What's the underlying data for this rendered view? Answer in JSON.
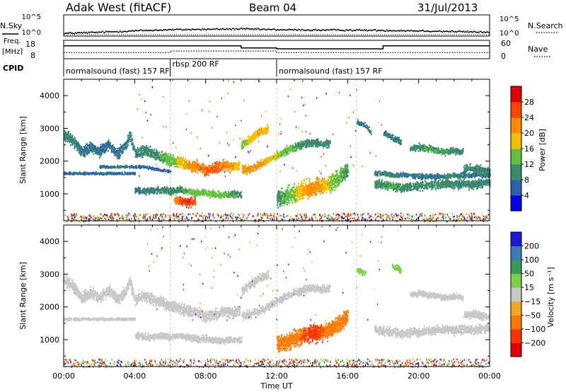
{
  "header": {
    "station": "Adak West (fitACF)",
    "beam": "Beam 04",
    "date": "31/Jul/2013"
  },
  "labels": {
    "nsky": "N.Sky",
    "nsearch": "N.Search",
    "freq_top": "Freq.",
    "freq_unit": "[MHz]",
    "nave": "Nave",
    "cpid": "CPID",
    "slant_range": "Slant Range [km]",
    "time_ut": "Time UT",
    "power_label": "Power [dB]",
    "velocity_label": "Velocity [m s⁻¹]"
  },
  "ticks": {
    "nsky_left": [
      "10^5",
      "10^0"
    ],
    "nsky_right": [
      "10^5",
      "10^0"
    ],
    "freq_left": [
      "18",
      "8"
    ],
    "nave_right": [
      "60",
      "0"
    ],
    "range": [
      "1000",
      "2000",
      "3000",
      "4000"
    ],
    "time": [
      "00:00",
      "04:00",
      "08:00",
      "12:00",
      "16:00",
      "20:00",
      "00:00"
    ]
  },
  "cpid_segments": [
    {
      "label": "normalsound (fast) 157 RF",
      "start_h": 0
    },
    {
      "label": "rbsp 200 RF",
      "start_h": 6
    },
    {
      "label": "normalsound (fast) 157 RF",
      "start_h": 12
    }
  ],
  "colors": {
    "power_scale": [
      "#0000ee",
      "#2b5fb0",
      "#3a8a6a",
      "#60c040",
      "#f0c000",
      "#ff8c00",
      "#ff4500",
      "#e00000"
    ],
    "velocity_scale": [
      "#1a1ad8",
      "#3a7bb8",
      "#3a9a5a",
      "#7ed04a",
      "#c8c8c8",
      "#f5a623",
      "#ff7a00",
      "#ff3300",
      "#e00000"
    ],
    "ground_scatter": "#c8c8c8"
  },
  "chart_data": [
    {
      "type": "line",
      "name": "search-noise-panel",
      "x_hours": [
        0,
        2,
        4,
        6,
        8,
        10,
        12,
        14,
        16,
        18,
        20,
        22,
        24
      ],
      "nsky_log10": [
        0.5,
        0.8,
        1.2,
        1.5,
        1.6,
        1.7,
        1.5,
        1.4,
        1.4,
        1.3,
        1.2,
        1.0,
        0.8
      ],
      "nsearch_log10": [
        0.0,
        0.0,
        0.0,
        0.0,
        0.0,
        0.0,
        0.0,
        0.0,
        0.0,
        0.0,
        0.0,
        0.0,
        0.0
      ],
      "ylim_log10": [
        0,
        5
      ]
    },
    {
      "type": "line",
      "name": "frequency-nave-panel",
      "freq_steps": [
        {
          "from_h": 0,
          "to_h": 10,
          "mhz": 16
        },
        {
          "from_h": 10,
          "to_h": 12,
          "mhz": 14.5
        },
        {
          "from_h": 12,
          "to_h": 18,
          "mhz": 13.8
        },
        {
          "from_h": 18,
          "to_h": 24,
          "mhz": 16
        }
      ],
      "nave_steps": [
        {
          "from_h": 0,
          "to_h": 6,
          "value": 18
        },
        {
          "from_h": 6,
          "to_h": 12,
          "value": 25
        },
        {
          "from_h": 12,
          "to_h": 24,
          "value": 18
        }
      ],
      "freq_lim": [
        8,
        18
      ],
      "nave_lim": [
        0,
        60
      ]
    },
    {
      "type": "heatmap",
      "name": "power-panel",
      "x_range_h": [
        0,
        24
      ],
      "ylim_km": [
        180,
        4500
      ],
      "colorbar_ticks": [
        4,
        8,
        12,
        16,
        20,
        24,
        28
      ],
      "colorbar_range": [
        0,
        30
      ],
      "bands": [
        {
          "t": [
            0,
            0.5,
            1,
            1.5,
            2,
            2.5,
            3,
            3.5,
            3.7,
            4,
            4.5,
            5,
            5.5,
            6,
            6.5,
            7,
            7.5,
            8,
            8.5,
            9,
            9.5,
            9.9
          ],
          "r": [
            2850,
            2650,
            2300,
            2450,
            2300,
            2550,
            2250,
            2500,
            2850,
            2250,
            2350,
            2250,
            2150,
            2050,
            2000,
            1900,
            1850,
            1750,
            1800,
            1900,
            1850,
            1900
          ],
          "width_km": 250,
          "p": [
            9,
            9,
            8,
            8,
            8,
            8,
            8,
            8,
            9,
            9,
            9,
            10,
            12,
            14,
            17,
            22,
            23,
            24,
            25,
            23,
            20,
            18
          ]
        },
        {
          "t": [
            0,
            0.5,
            1,
            1.5,
            2,
            2.5,
            3,
            3.5,
            4
          ],
          "r": [
            1650,
            1650,
            1650,
            1650,
            1650,
            1650,
            1650,
            1650,
            1650
          ],
          "width_km": 60,
          "p": [
            7,
            8,
            8,
            7,
            8,
            8,
            7,
            7,
            7
          ]
        },
        {
          "t": [
            2,
            2.5,
            3,
            3.5,
            4,
            4.5,
            5,
            5.5,
            6
          ],
          "r": [
            1850,
            1850,
            1850,
            1850,
            1850,
            1850,
            1800,
            1750,
            1700
          ],
          "width_km": 60,
          "p": [
            7,
            8,
            8,
            8,
            7,
            7,
            7,
            7,
            7
          ]
        },
        {
          "t": [
            4,
            4.5,
            5,
            5.5,
            6,
            6.5,
            7,
            7.5,
            8,
            8.5,
            9,
            9.5,
            10
          ],
          "r": [
            1150,
            1100,
            1100,
            1150,
            1100,
            1150,
            1100,
            1050,
            1050,
            1000,
            1000,
            1000,
            1000
          ],
          "width_km": 160,
          "p": [
            8,
            9,
            9,
            10,
            10,
            11,
            13,
            14,
            15,
            14,
            13,
            12,
            11
          ]
        },
        {
          "t": [
            6.2,
            6.6,
            7,
            7.4
          ],
          "r": [
            850,
            800,
            750,
            800
          ],
          "width_km": 200,
          "p": [
            22,
            26,
            28,
            25
          ]
        },
        {
          "t": [
            10,
            10.5,
            11,
            11.5,
            12,
            12.5,
            13,
            13.5,
            14,
            14.5,
            15
          ],
          "r": [
            1750,
            1800,
            1900,
            2050,
            2200,
            2350,
            2450,
            2550,
            2600,
            2550,
            2600
          ],
          "width_km": 180,
          "p": [
            20,
            22,
            21,
            19,
            16,
            14,
            12,
            11,
            10,
            9,
            9
          ]
        },
        {
          "t": [
            10,
            10.5,
            11,
            11.5
          ],
          "r": [
            2500,
            2700,
            2900,
            3000
          ],
          "width_km": 200,
          "p": [
            14,
            18,
            20,
            18
          ]
        },
        {
          "t": [
            12,
            12.5,
            13,
            13.5,
            14,
            14.5,
            15,
            15.5,
            16
          ],
          "r": [
            900,
            950,
            1050,
            1150,
            1200,
            1250,
            1350,
            1500,
            1750
          ],
          "width_km": 400,
          "p": [
            10,
            13,
            16,
            20,
            22,
            20,
            16,
            13,
            11
          ]
        },
        {
          "t": [
            17.5,
            18,
            18.5,
            19,
            19.5,
            20,
            20.5,
            21,
            21.5,
            22,
            22.5,
            23,
            23.5,
            24
          ],
          "r": [
            1350,
            1300,
            1250,
            1200,
            1250,
            1250,
            1300,
            1300,
            1350,
            1300,
            1350,
            1300,
            1350,
            1400
          ],
          "width_km": 200,
          "p": [
            10,
            11,
            12,
            11,
            10,
            10,
            11,
            10,
            10,
            9,
            9,
            9,
            9,
            9
          ]
        },
        {
          "t": [
            17.5,
            18,
            18.5,
            19,
            19.5,
            20,
            20.5,
            21,
            21.5,
            22,
            22.5,
            23,
            23.5,
            24
          ],
          "r": [
            1650,
            1650,
            1600,
            1600,
            1600,
            1550,
            1550,
            1550,
            1550,
            1600,
            1600,
            1600,
            1600,
            1600
          ],
          "width_km": 120,
          "p": [
            8,
            9,
            9,
            8,
            8,
            8,
            8,
            8,
            9,
            9,
            8,
            8,
            8,
            8
          ]
        },
        {
          "t": [
            19.5,
            20,
            20.5,
            21,
            21.5,
            22,
            22.5
          ],
          "r": [
            2400,
            2450,
            2400,
            2350,
            2300,
            2350,
            2300
          ],
          "width_km": 150,
          "p": [
            9,
            11,
            12,
            12,
            11,
            10,
            9
          ]
        },
        {
          "t": [
            22.5,
            23,
            23.5,
            24
          ],
          "r": [
            1800,
            1800,
            1750,
            1700
          ],
          "width_km": 200,
          "p": [
            9,
            9,
            9,
            9
          ]
        },
        {
          "t": [
            18,
            18.5,
            19
          ],
          "r": [
            2900,
            2750,
            2600
          ],
          "width_km": 150,
          "p": [
            8,
            9,
            8
          ]
        },
        {
          "t": [
            16.5,
            17,
            17.3
          ],
          "r": [
            3200,
            3100,
            2900
          ],
          "width_km": 120,
          "p": [
            8,
            9,
            8
          ]
        }
      ]
    },
    {
      "type": "heatmap",
      "name": "velocity-panel",
      "x_range_h": [
        0,
        24
      ],
      "ylim_km": [
        180,
        4500
      ],
      "colorbar_ticks": [
        200,
        100,
        50,
        15,
        -15,
        -50,
        -100,
        -200
      ],
      "colorbar_range": [
        -250,
        250
      ],
      "bands": [
        {
          "t": [
            0,
            0.5,
            1,
            1.5,
            2,
            2.5,
            3,
            3.5,
            3.7,
            4,
            4.5,
            5,
            5.5,
            6,
            6.5,
            7,
            7.5,
            8,
            8.5,
            9,
            9.5,
            9.9
          ],
          "r": [
            2850,
            2650,
            2300,
            2450,
            2300,
            2550,
            2250,
            2500,
            2850,
            2250,
            2350,
            2250,
            2150,
            2050,
            2000,
            1900,
            1850,
            1750,
            1800,
            1900,
            1850,
            1900
          ],
          "width_km": 250,
          "v": [
            0,
            0,
            0,
            0,
            0,
            0,
            0,
            0,
            0,
            0,
            0,
            0,
            0,
            0,
            0,
            0,
            0,
            0,
            0,
            0,
            0,
            0
          ]
        },
        {
          "t": [
            0,
            0.5,
            1,
            1.5,
            2,
            2.5,
            3,
            3.5,
            4
          ],
          "r": [
            1650,
            1650,
            1650,
            1650,
            1650,
            1650,
            1650,
            1650,
            1650
          ],
          "width_km": 60,
          "v": [
            0,
            0,
            0,
            0,
            0,
            0,
            0,
            0,
            0
          ]
        },
        {
          "t": [
            4,
            4.5,
            5,
            5.5,
            6,
            6.5,
            7,
            7.5,
            8,
            8.5,
            9,
            9.5,
            10
          ],
          "r": [
            1150,
            1100,
            1100,
            1150,
            1100,
            1150,
            1100,
            1050,
            1050,
            1000,
            1000,
            1000,
            1000
          ],
          "width_km": 160,
          "v": [
            0,
            0,
            0,
            0,
            0,
            0,
            0,
            0,
            0,
            0,
            0,
            0,
            0
          ]
        },
        {
          "t": [
            10,
            10.5,
            11,
            11.5,
            12,
            12.5,
            13,
            13.5,
            14,
            14.5,
            15
          ],
          "r": [
            1750,
            1800,
            1900,
            2050,
            2200,
            2350,
            2450,
            2550,
            2600,
            2550,
            2600
          ],
          "width_km": 180,
          "v": [
            0,
            0,
            0,
            0,
            0,
            0,
            0,
            0,
            0,
            0,
            0
          ]
        },
        {
          "t": [
            10,
            10.5,
            11,
            11.5
          ],
          "r": [
            2500,
            2700,
            2900,
            3000
          ],
          "width_km": 200,
          "v": [
            0,
            0,
            0,
            0
          ]
        },
        {
          "t": [
            12,
            12.5,
            13,
            13.5,
            14,
            14.5,
            15,
            15.5,
            16
          ],
          "r": [
            900,
            950,
            1050,
            1150,
            1200,
            1250,
            1350,
            1500,
            1750
          ],
          "width_km": 400,
          "v": [
            -60,
            -80,
            -90,
            -100,
            -110,
            -100,
            -90,
            -80,
            -70
          ]
        },
        {
          "t": [
            17.5,
            18,
            18.5,
            19,
            19.5,
            20,
            20.5,
            21,
            21.5,
            22,
            22.5,
            23,
            23.5,
            24
          ],
          "r": [
            1350,
            1300,
            1250,
            1200,
            1250,
            1250,
            1300,
            1300,
            1350,
            1300,
            1350,
            1300,
            1350,
            1400
          ],
          "width_km": 200,
          "v": [
            0,
            0,
            0,
            0,
            0,
            0,
            0,
            0,
            0,
            0,
            0,
            0,
            0,
            0
          ]
        },
        {
          "t": [
            19.5,
            20,
            20.5,
            21,
            21.5,
            22,
            22.5
          ],
          "r": [
            2400,
            2450,
            2400,
            2350,
            2300,
            2350,
            2300
          ],
          "width_km": 150,
          "v": [
            0,
            0,
            0,
            0,
            0,
            0,
            0
          ]
        },
        {
          "t": [
            22.5,
            23,
            23.5,
            24
          ],
          "r": [
            1800,
            1800,
            1750,
            1700
          ],
          "width_km": 200,
          "v": [
            0,
            0,
            0,
            0
          ]
        },
        {
          "t": [
            16.5,
            17
          ],
          "r": [
            3150,
            3050
          ],
          "width_km": 120,
          "v": [
            30,
            40
          ]
        },
        {
          "t": [
            18.5,
            19
          ],
          "r": [
            3250,
            3150
          ],
          "width_km": 150,
          "v": [
            30,
            30
          ]
        }
      ]
    }
  ]
}
